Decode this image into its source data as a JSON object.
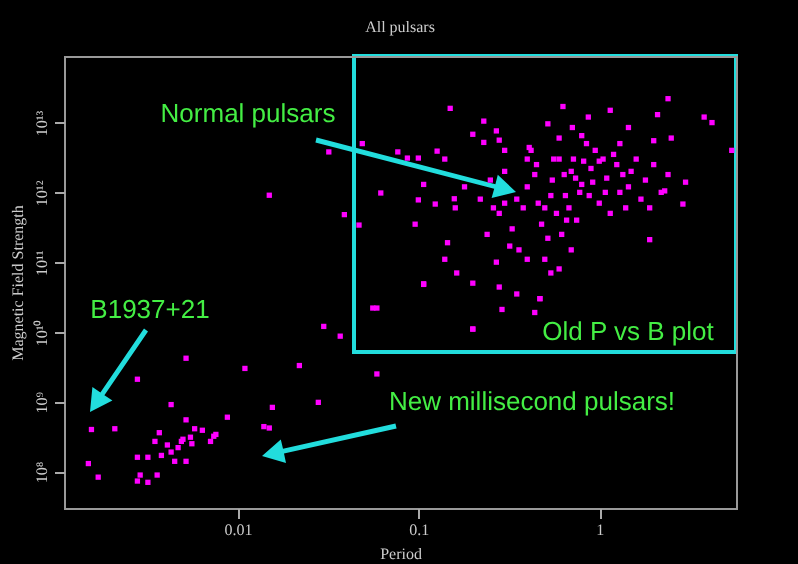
{
  "chart_data": {
    "type": "scatter",
    "title": "All pulsars",
    "xlabel": "Period",
    "ylabel": "Magnetic Field Strength",
    "log": "xy",
    "marker": "square",
    "xlim": [
      0.0011,
      5.7
    ],
    "ylim": [
      30000000.0,
      90000000000000.0
    ],
    "xticks": [
      0.01,
      0.1,
      1
    ],
    "yticks": [
      {
        "value": 100000000.0,
        "label": "10⁸"
      },
      {
        "value": 1000000000.0,
        "label": "10⁹"
      },
      {
        "value": 10000000000.0,
        "label": "10¹⁰"
      },
      {
        "value": 100000000000.0,
        "label": "10¹¹"
      },
      {
        "value": 1000000000000.0,
        "label": "10¹²"
      },
      {
        "value": 10000000000000.0,
        "label": "10¹³"
      }
    ],
    "annotations": [
      "Normal pulsars",
      "B1937+21",
      "New millisecond pulsars!",
      "Old P vs B plot"
    ],
    "series": [
      {
        "color": "#ff00ff",
        "x": [
          0.00156,
          0.0015,
          0.0017,
          0.0021,
          0.0028,
          0.0028,
          0.0028,
          0.0029,
          0.0032,
          0.0032,
          0.0035,
          0.0036,
          0.0037,
          0.0038,
          0.0041,
          0.0043,
          0.0043,
          0.0045,
          0.0047,
          0.0049,
          0.005,
          0.0052,
          0.0052,
          0.0052,
          0.0055,
          0.0056,
          0.0058,
          0.0064,
          0.0071,
          0.0074,
          0.0076,
          0.0088,
          0.011,
          0.014,
          0.015,
          0.0156,
          0.022,
          0.028,
          0.03,
          0.037,
          0.059,
          0.056,
          0.059,
          0.107,
          0.2,
          0.28,
          0.29,
          0.44,
          0.47,
          0.015,
          0.032,
          0.039,
          0.047,
          0.049,
          0.062,
          0.077,
          0.1,
          0.1,
          0.096,
          0.127,
          0.14,
          0.15,
          0.107,
          0.124,
          0.158,
          0.2,
          0.23,
          0.23,
          0.27,
          0.28,
          0.41,
          0.52,
          0.63,
          0.71,
          0.87,
          1.15,
          1.45,
          2.1,
          2.4,
          3.8,
          4.2,
          5.4,
          3.0,
          2.3,
          2.5,
          2.0,
          0.145,
          0.14,
          0.107,
          0.163,
          0.47,
          0.35,
          0.54,
          0.6,
          0.4,
          0.27,
          1.9,
          2.9,
          0.087,
          0.2,
          0.2,
          0.25,
          0.3,
          0.35,
          0.4,
          0.45,
          0.5,
          0.55,
          0.6,
          0.65,
          0.7,
          0.75,
          0.8,
          0.9,
          1.0,
          1.1,
          1.2,
          1.3,
          1.5,
          1.7,
          2.0,
          0.28,
          0.33,
          0.38,
          0.42,
          0.48,
          0.52,
          0.58,
          0.62,
          0.68,
          0.72,
          0.78,
          0.85,
          0.95,
          1.05,
          1.15,
          1.25,
          1.4,
          1.6,
          1.8,
          2.2,
          0.22,
          0.24,
          0.26,
          0.3,
          0.32,
          0.36,
          0.44,
          0.46,
          0.54,
          0.56,
          0.64,
          0.66,
          0.74,
          0.82,
          0.88,
          0.92,
          1.0,
          1.08,
          1.35,
          1.45,
          1.9,
          0.18,
          0.16,
          0.3,
          0.4,
          0.6,
          0.8,
          1.3,
          2.4,
          0.5,
          0.7
        ],
        "values": [
          400000000.0,
          130000000.0,
          83000000.0,
          410000000.0,
          2100000000.0,
          160000000.0,
          73000000.0,
          89000000.0,
          70000000.0,
          160000000.0,
          270000000.0,
          89000000.0,
          360000000.0,
          170000000.0,
          240000000.0,
          910000000.0,
          190000000.0,
          140000000.0,
          220000000.0,
          270000000.0,
          290000000.0,
          4200000000.0,
          550000000.0,
          140000000.0,
          310000000.0,
          250000000.0,
          410000000.0,
          390000000.0,
          270000000.0,
          320000000.0,
          340000000.0,
          600000000.0,
          3000000000.0,
          440000000.0,
          420000000.0,
          830000000.0,
          3300000000.0,
          980000000.0,
          12000000000.0,
          8700000000.0,
          2500000000.0,
          22000000000.0,
          22000000000.0,
          48000000000.0,
          11000000000.0,
          44000000000.0,
          21000000000.0,
          19000000000.0,
          30000000000.0,
          910000000000.0,
          3800000000000.0,
          480000000000.0,
          340000000000.0,
          5000000000000.0,
          980000000000.0,
          3800000000000.0,
          3100000000000.0,
          780000000000.0,
          350000000000.0,
          3900000000000.0,
          3000000000000.0,
          16000000000000.0,
          1300000000000.0,
          680000000000.0,
          810000000000.0,
          6800000000000.0,
          10500000000000.0,
          5200000000000.0,
          7600000000000.0,
          5600000000000.0,
          4400000000000.0,
          9600000000000.0,
          17000000000000.0,
          8500000000000.0,
          12000000000000.0,
          15000000000000.0,
          8500000000000.0,
          13000000000000.0,
          22000000000000.0,
          12000000000000.0,
          10000000000000.0,
          4000000000000.0,
          1400000000000.0,
          1050000000000.0,
          6000000000000.0,
          5500000000000.0,
          190000000000.0,
          110000000000.0,
          49000000000.0,
          70000000000.0,
          30000000000.0,
          35000000000.0,
          70000000000.0,
          80000000000.0,
          110000000000.0,
          100000000000.0,
          210000000000.0,
          680000000000.0,
          3100000000000.0,
          11000000000.0,
          50000000000.0,
          1500000000000.0,
          2000000000000.0,
          800000000000.0,
          1200000000000.0,
          2500000000000.0,
          600000000000.0,
          1500000000000.0,
          3000000000000.0,
          900000000000.0,
          2000000000000.0,
          400000000000.0,
          1300000000000.0,
          2200000000000.0,
          700000000000.0,
          1600000000000.0,
          3500000000000.0,
          1000000000000.0,
          2000000000000.0,
          800000000000.0,
          2500000000000.0,
          500000000000.0,
          300000000000.0,
          600000000000.0,
          4000000000000.0,
          350000000000.0,
          220000000000.0,
          500000000000.0,
          250000000000.0,
          600000000000.0,
          3000000000000.0,
          1000000000000.0,
          5000000000000.0,
          4000000000000.0,
          3000000000000.0,
          500000000000.0,
          2500000000000.0,
          600000000000.0,
          3000000000000.0,
          1500000000000.0,
          1000000000000.0,
          800000000000.0,
          250000000000.0,
          600000000000.0,
          700000000000.0,
          170000000000.0,
          150000000000.0,
          1800000000000.0,
          700000000000.0,
          900000000000.0,
          3000000000000.0,
          1800000000000.0,
          400000000000.0,
          1600000000000.0,
          2800000000000.0,
          900000000000.0,
          1400000000000.0,
          2800000000000.0,
          1000000000000.0,
          1800000000000.0,
          1200000000000.0,
          600000000000.0,
          1200000000000.0,
          600000000000.0,
          4000000000000.0,
          3000000000000.0,
          6000000000000.0,
          6500000000000.0,
          5000000000000.0,
          1800000000000.0,
          110000000000.0,
          150000000000.0
        ]
      }
    ]
  }
}
